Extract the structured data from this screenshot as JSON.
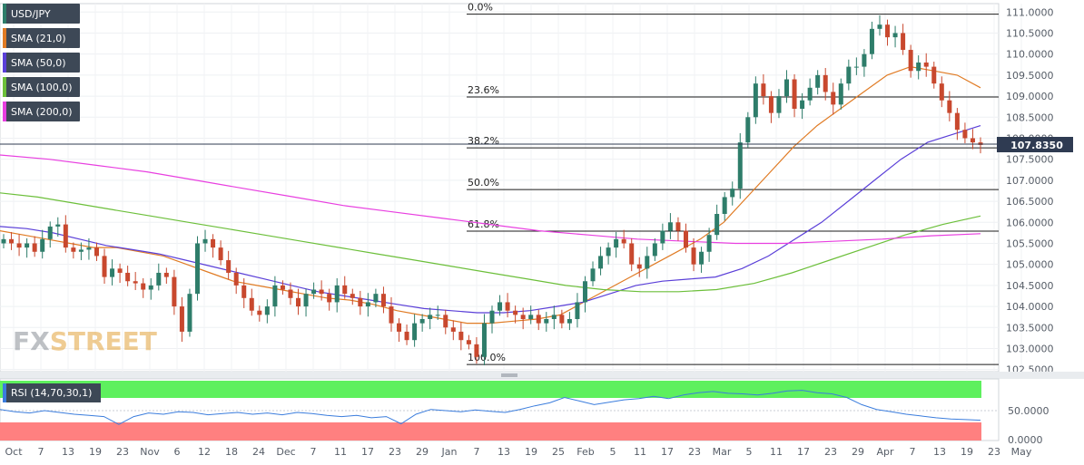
{
  "legend": [
    {
      "label": "USD/JPY",
      "color": "#2e7d6a"
    },
    {
      "label": "SMA (21,0)",
      "color": "#e07b24"
    },
    {
      "label": "SMA (50,0)",
      "color": "#5a3fd8"
    },
    {
      "label": "SMA (100,0)",
      "color": "#6cbf3a"
    },
    {
      "label": "SMA (200,0)",
      "color": "#e83fe0"
    }
  ],
  "watermark": {
    "part1": "FX",
    "part2": "STREET"
  },
  "rsi": {
    "label": "RSI (14,70,30,1)",
    "color": "#3b7ddd",
    "overbought_color": "#5ef05e",
    "oversold_color": "#ff8080",
    "ticks": [
      "50.0000",
      "0.0000"
    ]
  },
  "price_badge": {
    "label": "107.8350",
    "color": "#2f3b52"
  },
  "chart_data": {
    "type": "line",
    "title": "USD/JPY",
    "x_ticks": [
      "Oct",
      "7",
      "13",
      "19",
      "23",
      "Nov",
      "6",
      "12",
      "18",
      "24",
      "Dec",
      "7",
      "11",
      "17",
      "23",
      "29",
      "Jan",
      "7",
      "13",
      "19",
      "25",
      "Feb",
      "5",
      "11",
      "17",
      "23",
      "Mar",
      "5",
      "11",
      "17",
      "23",
      "29",
      "Apr",
      "7",
      "13",
      "19",
      "23",
      "May"
    ],
    "y_ticks": [
      "111.0000",
      "110.5000",
      "110.0000",
      "109.5000",
      "109.0000",
      "108.5000",
      "108.0000",
      "107.5000",
      "107.0000",
      "106.5000",
      "106.0000",
      "105.5000",
      "105.0000",
      "104.5000",
      "104.0000",
      "103.5000",
      "103.0000",
      "102.5000"
    ],
    "ylim": [
      102.45,
      111.2
    ],
    "fibonacci": [
      {
        "label": "0.0%",
        "value": 110.95
      },
      {
        "label": "23.6%",
        "value": 108.98
      },
      {
        "label": "38.2%",
        "value": 107.77
      },
      {
        "label": "50.0%",
        "value": 106.78
      },
      {
        "label": "61.8%",
        "value": 105.79
      },
      {
        "label": "100.0%",
        "value": 102.62
      }
    ],
    "last_price": 107.835,
    "close_series": [
      105.6,
      105.5,
      105.4,
      105.5,
      105.3,
      105.6,
      105.9,
      105.95,
      105.4,
      105.3,
      105.35,
      105.4,
      105.2,
      104.7,
      104.9,
      104.8,
      104.6,
      104.55,
      104.4,
      104.5,
      104.8,
      104.7,
      104.0,
      103.4,
      104.3,
      105.5,
      105.6,
      105.4,
      105.1,
      104.8,
      104.5,
      104.2,
      103.9,
      103.8,
      104.0,
      104.5,
      104.4,
      104.2,
      104.0,
      104.3,
      104.4,
      104.3,
      104.1,
      104.5,
      104.3,
      104.2,
      104.0,
      104.1,
      104.3,
      104.0,
      103.6,
      103.4,
      103.2,
      103.6,
      103.7,
      103.8,
      103.8,
      103.5,
      103.4,
      103.2,
      103.1,
      102.8,
      103.6,
      103.9,
      104.1,
      103.9,
      103.8,
      103.7,
      103.8,
      103.6,
      103.7,
      103.8,
      103.6,
      103.7,
      104.1,
      104.6,
      104.9,
      105.2,
      105.4,
      105.6,
      105.5,
      105.0,
      104.9,
      105.2,
      105.5,
      105.8,
      106.0,
      105.8,
      105.4,
      105.0,
      105.3,
      105.7,
      106.2,
      106.6,
      106.8,
      107.9,
      108.5,
      109.3,
      109.0,
      108.6,
      109.0,
      109.4,
      108.7,
      108.9,
      109.2,
      109.5,
      109.1,
      108.8,
      109.3,
      109.7,
      109.7,
      110.0,
      110.6,
      110.7,
      110.4,
      110.5,
      110.1,
      109.6,
      109.8,
      109.7,
      109.3,
      108.9,
      108.6,
      108.2,
      108.0,
      107.9,
      107.84
    ],
    "series": [
      {
        "name": "SMA (21,0)",
        "color": "#e07b24",
        "values": [
          105.8,
          105.7,
          105.6,
          105.5,
          105.4,
          105.4,
          105.3,
          105.2,
          105.0,
          104.8,
          104.6,
          104.5,
          104.4,
          104.3,
          104.2,
          104.15,
          104.05,
          103.9,
          103.8,
          103.7,
          103.6,
          103.6,
          103.65,
          103.7,
          103.8,
          104.1,
          104.4,
          104.7,
          105.0,
          105.3,
          105.6,
          106.0,
          106.6,
          107.2,
          107.8,
          108.3,
          108.7,
          109.1,
          109.5,
          109.7,
          109.6,
          109.5,
          109.2
        ]
      },
      {
        "name": "SMA (50,0)",
        "color": "#5a3fd8",
        "values": [
          105.9,
          105.85,
          105.75,
          105.6,
          105.45,
          105.35,
          105.25,
          105.1,
          104.95,
          104.8,
          104.65,
          104.5,
          104.35,
          104.25,
          104.15,
          104.05,
          103.95,
          103.9,
          103.85,
          103.85,
          103.9,
          104.0,
          104.1,
          104.3,
          104.5,
          104.6,
          104.65,
          104.7,
          104.9,
          105.2,
          105.6,
          106.0,
          106.5,
          107.0,
          107.5,
          107.9,
          108.1,
          108.3
        ]
      },
      {
        "name": "SMA (100,0)",
        "color": "#6cbf3a",
        "values": [
          106.7,
          106.6,
          106.45,
          106.3,
          106.15,
          106.0,
          105.85,
          105.7,
          105.55,
          105.4,
          105.25,
          105.1,
          104.95,
          104.8,
          104.65,
          104.5,
          104.4,
          104.35,
          104.35,
          104.4,
          104.55,
          104.8,
          105.1,
          105.4,
          105.7,
          105.95,
          106.15
        ]
      },
      {
        "name": "SMA (200,0)",
        "color": "#e83fe0",
        "values": [
          107.6,
          107.5,
          107.35,
          107.2,
          107.0,
          106.8,
          106.6,
          106.4,
          106.25,
          106.1,
          105.95,
          105.8,
          105.7,
          105.6,
          105.55,
          105.5,
          105.5,
          105.55,
          105.6,
          105.68,
          105.73
        ]
      },
      {
        "name": "RSI (14,70,30,1)",
        "color": "#3b7ddd",
        "values": [
          52,
          48,
          46,
          50,
          47,
          44,
          42,
          40,
          27,
          40,
          46,
          44,
          48,
          47,
          43,
          45,
          47,
          44,
          46,
          43,
          47,
          45,
          42,
          40,
          42,
          38,
          40,
          28,
          44,
          52,
          50,
          48,
          51,
          49,
          47,
          52,
          58,
          63,
          72,
          66,
          60,
          64,
          68,
          70,
          74,
          70,
          76,
          80,
          82,
          79,
          78,
          76,
          79,
          83,
          84,
          80,
          78,
          72,
          60,
          52,
          48,
          44,
          41,
          38,
          36,
          35,
          34
        ]
      }
    ]
  }
}
